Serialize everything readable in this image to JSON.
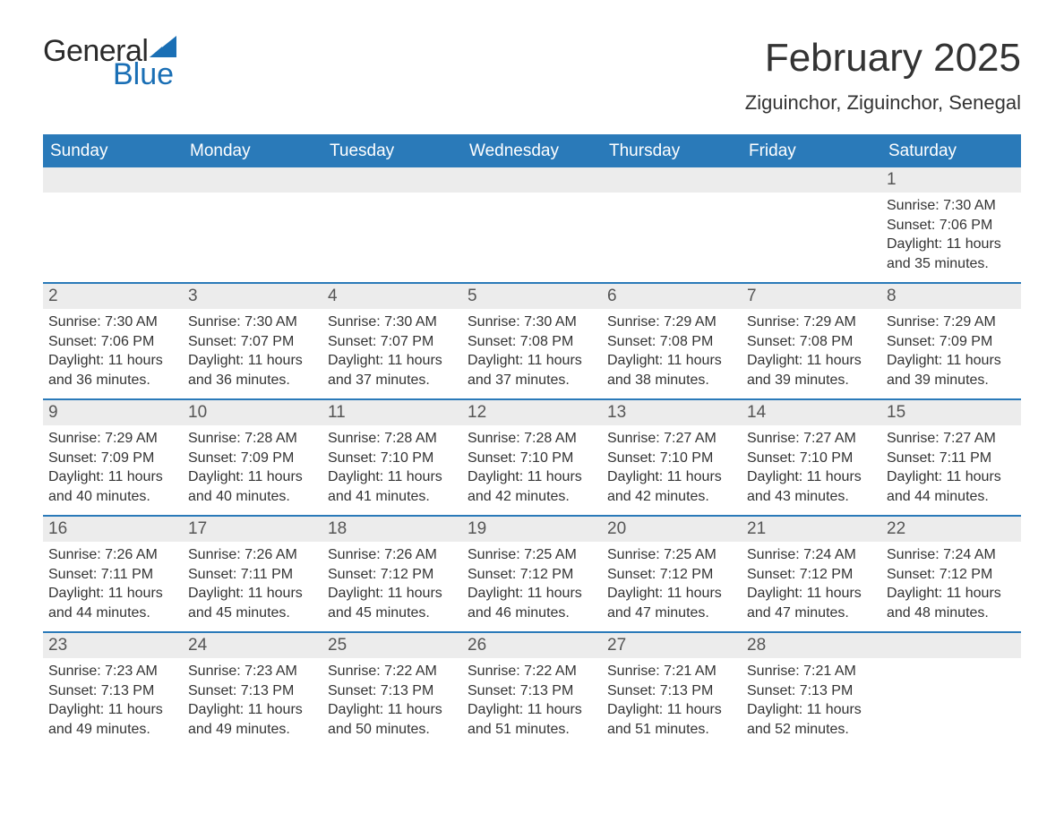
{
  "logo": {
    "text_top": "General",
    "text_bottom": "Blue",
    "top_color": "#2a2a2a",
    "bottom_color": "#1a6fb5",
    "shape_color": "#1a6fb5"
  },
  "title": "February 2025",
  "location": "Ziguinchor, Ziguinchor, Senegal",
  "colors": {
    "header_bg": "#2a7ab9",
    "header_text": "#ffffff",
    "rule": "#2a7ab9",
    "daynum_bg": "#ececec",
    "daynum_text": "#555555",
    "body_text": "#333333",
    "page_bg": "#ffffff"
  },
  "fonts": {
    "title_size_pt": 33,
    "location_size_pt": 16,
    "weekday_size_pt": 14,
    "daynum_size_pt": 14,
    "body_size_pt": 12
  },
  "weekdays": [
    "Sunday",
    "Monday",
    "Tuesday",
    "Wednesday",
    "Thursday",
    "Friday",
    "Saturday"
  ],
  "weeks": [
    [
      {
        "blank": true
      },
      {
        "blank": true
      },
      {
        "blank": true
      },
      {
        "blank": true
      },
      {
        "blank": true
      },
      {
        "blank": true
      },
      {
        "day": 1,
        "sunrise": "7:30 AM",
        "sunset": "7:06 PM",
        "daylight": "11 hours and 35 minutes."
      }
    ],
    [
      {
        "day": 2,
        "sunrise": "7:30 AM",
        "sunset": "7:06 PM",
        "daylight": "11 hours and 36 minutes."
      },
      {
        "day": 3,
        "sunrise": "7:30 AM",
        "sunset": "7:07 PM",
        "daylight": "11 hours and 36 minutes."
      },
      {
        "day": 4,
        "sunrise": "7:30 AM",
        "sunset": "7:07 PM",
        "daylight": "11 hours and 37 minutes."
      },
      {
        "day": 5,
        "sunrise": "7:30 AM",
        "sunset": "7:08 PM",
        "daylight": "11 hours and 37 minutes."
      },
      {
        "day": 6,
        "sunrise": "7:29 AM",
        "sunset": "7:08 PM",
        "daylight": "11 hours and 38 minutes."
      },
      {
        "day": 7,
        "sunrise": "7:29 AM",
        "sunset": "7:08 PM",
        "daylight": "11 hours and 39 minutes."
      },
      {
        "day": 8,
        "sunrise": "7:29 AM",
        "sunset": "7:09 PM",
        "daylight": "11 hours and 39 minutes."
      }
    ],
    [
      {
        "day": 9,
        "sunrise": "7:29 AM",
        "sunset": "7:09 PM",
        "daylight": "11 hours and 40 minutes."
      },
      {
        "day": 10,
        "sunrise": "7:28 AM",
        "sunset": "7:09 PM",
        "daylight": "11 hours and 40 minutes."
      },
      {
        "day": 11,
        "sunrise": "7:28 AM",
        "sunset": "7:10 PM",
        "daylight": "11 hours and 41 minutes."
      },
      {
        "day": 12,
        "sunrise": "7:28 AM",
        "sunset": "7:10 PM",
        "daylight": "11 hours and 42 minutes."
      },
      {
        "day": 13,
        "sunrise": "7:27 AM",
        "sunset": "7:10 PM",
        "daylight": "11 hours and 42 minutes."
      },
      {
        "day": 14,
        "sunrise": "7:27 AM",
        "sunset": "7:10 PM",
        "daylight": "11 hours and 43 minutes."
      },
      {
        "day": 15,
        "sunrise": "7:27 AM",
        "sunset": "7:11 PM",
        "daylight": "11 hours and 44 minutes."
      }
    ],
    [
      {
        "day": 16,
        "sunrise": "7:26 AM",
        "sunset": "7:11 PM",
        "daylight": "11 hours and 44 minutes."
      },
      {
        "day": 17,
        "sunrise": "7:26 AM",
        "sunset": "7:11 PM",
        "daylight": "11 hours and 45 minutes."
      },
      {
        "day": 18,
        "sunrise": "7:26 AM",
        "sunset": "7:12 PM",
        "daylight": "11 hours and 45 minutes."
      },
      {
        "day": 19,
        "sunrise": "7:25 AM",
        "sunset": "7:12 PM",
        "daylight": "11 hours and 46 minutes."
      },
      {
        "day": 20,
        "sunrise": "7:25 AM",
        "sunset": "7:12 PM",
        "daylight": "11 hours and 47 minutes."
      },
      {
        "day": 21,
        "sunrise": "7:24 AM",
        "sunset": "7:12 PM",
        "daylight": "11 hours and 47 minutes."
      },
      {
        "day": 22,
        "sunrise": "7:24 AM",
        "sunset": "7:12 PM",
        "daylight": "11 hours and 48 minutes."
      }
    ],
    [
      {
        "day": 23,
        "sunrise": "7:23 AM",
        "sunset": "7:13 PM",
        "daylight": "11 hours and 49 minutes."
      },
      {
        "day": 24,
        "sunrise": "7:23 AM",
        "sunset": "7:13 PM",
        "daylight": "11 hours and 49 minutes."
      },
      {
        "day": 25,
        "sunrise": "7:22 AM",
        "sunset": "7:13 PM",
        "daylight": "11 hours and 50 minutes."
      },
      {
        "day": 26,
        "sunrise": "7:22 AM",
        "sunset": "7:13 PM",
        "daylight": "11 hours and 51 minutes."
      },
      {
        "day": 27,
        "sunrise": "7:21 AM",
        "sunset": "7:13 PM",
        "daylight": "11 hours and 51 minutes."
      },
      {
        "day": 28,
        "sunrise": "7:21 AM",
        "sunset": "7:13 PM",
        "daylight": "11 hours and 52 minutes."
      },
      {
        "blank": true
      }
    ]
  ],
  "labels": {
    "sunrise": "Sunrise:",
    "sunset": "Sunset:",
    "daylight": "Daylight:"
  }
}
